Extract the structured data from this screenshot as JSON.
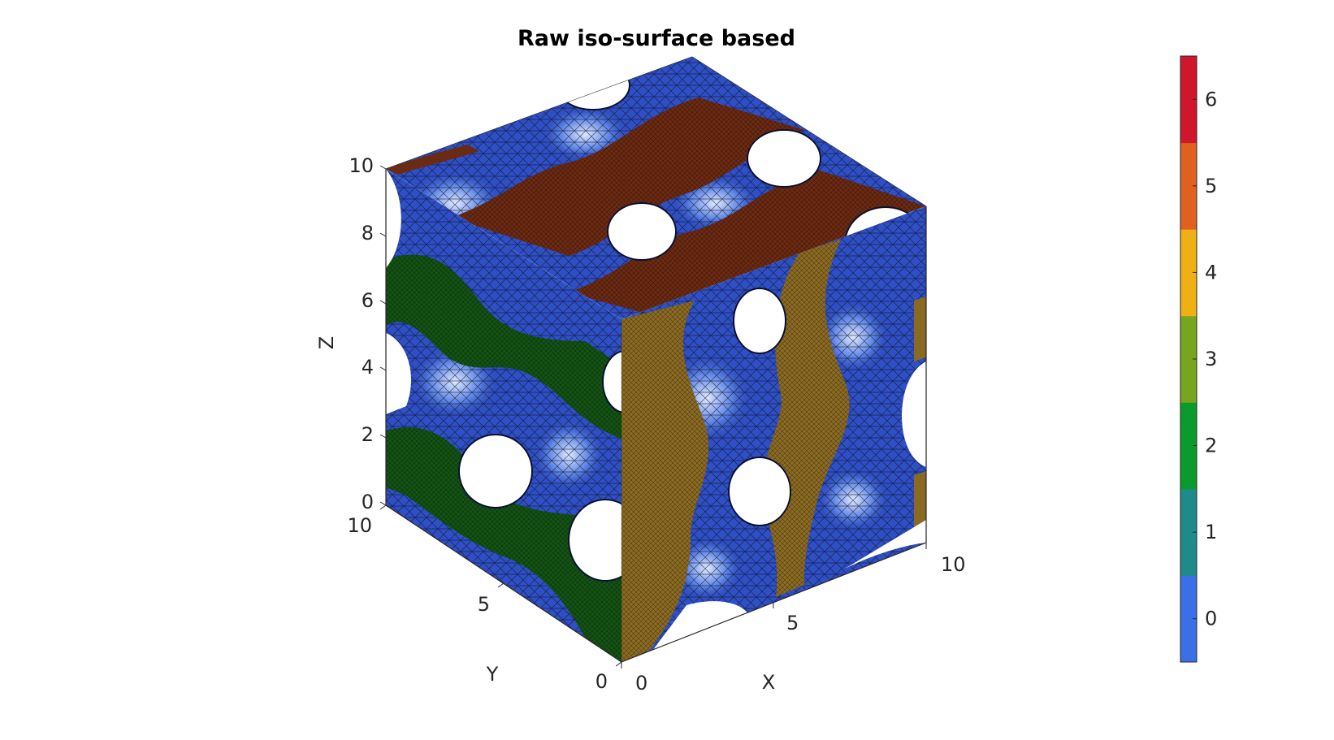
{
  "chart_data": {
    "type": "surface3d",
    "title": "Raw iso-surface based",
    "xlabel": "X",
    "ylabel": "Y",
    "zlabel": "Z",
    "xlim": [
      0,
      10
    ],
    "ylim": [
      0,
      10
    ],
    "zlim": [
      0,
      10
    ],
    "x_ticks": [
      "0",
      "5",
      "10"
    ],
    "y_ticks": [
      "0",
      "5",
      "10"
    ],
    "z_ticks": [
      "0",
      "2",
      "4",
      "6",
      "8",
      "10"
    ],
    "grid": true,
    "legend": "colorbar-right",
    "colorbar": {
      "min": -0.5,
      "max": 6.5,
      "ticks": [
        "0",
        "1",
        "2",
        "3",
        "4",
        "5",
        "6"
      ],
      "colors": [
        "#3a6fe8",
        "#1f8a8a",
        "#0b9a2c",
        "#77a51f",
        "#eeb015",
        "#e06020",
        "#d0162a"
      ]
    },
    "face_colors": {
      "surface": "#3050c8",
      "top_cap": "#6b2a12",
      "left_cap": "#145214",
      "right_cap": "#8a6a22"
    }
  }
}
